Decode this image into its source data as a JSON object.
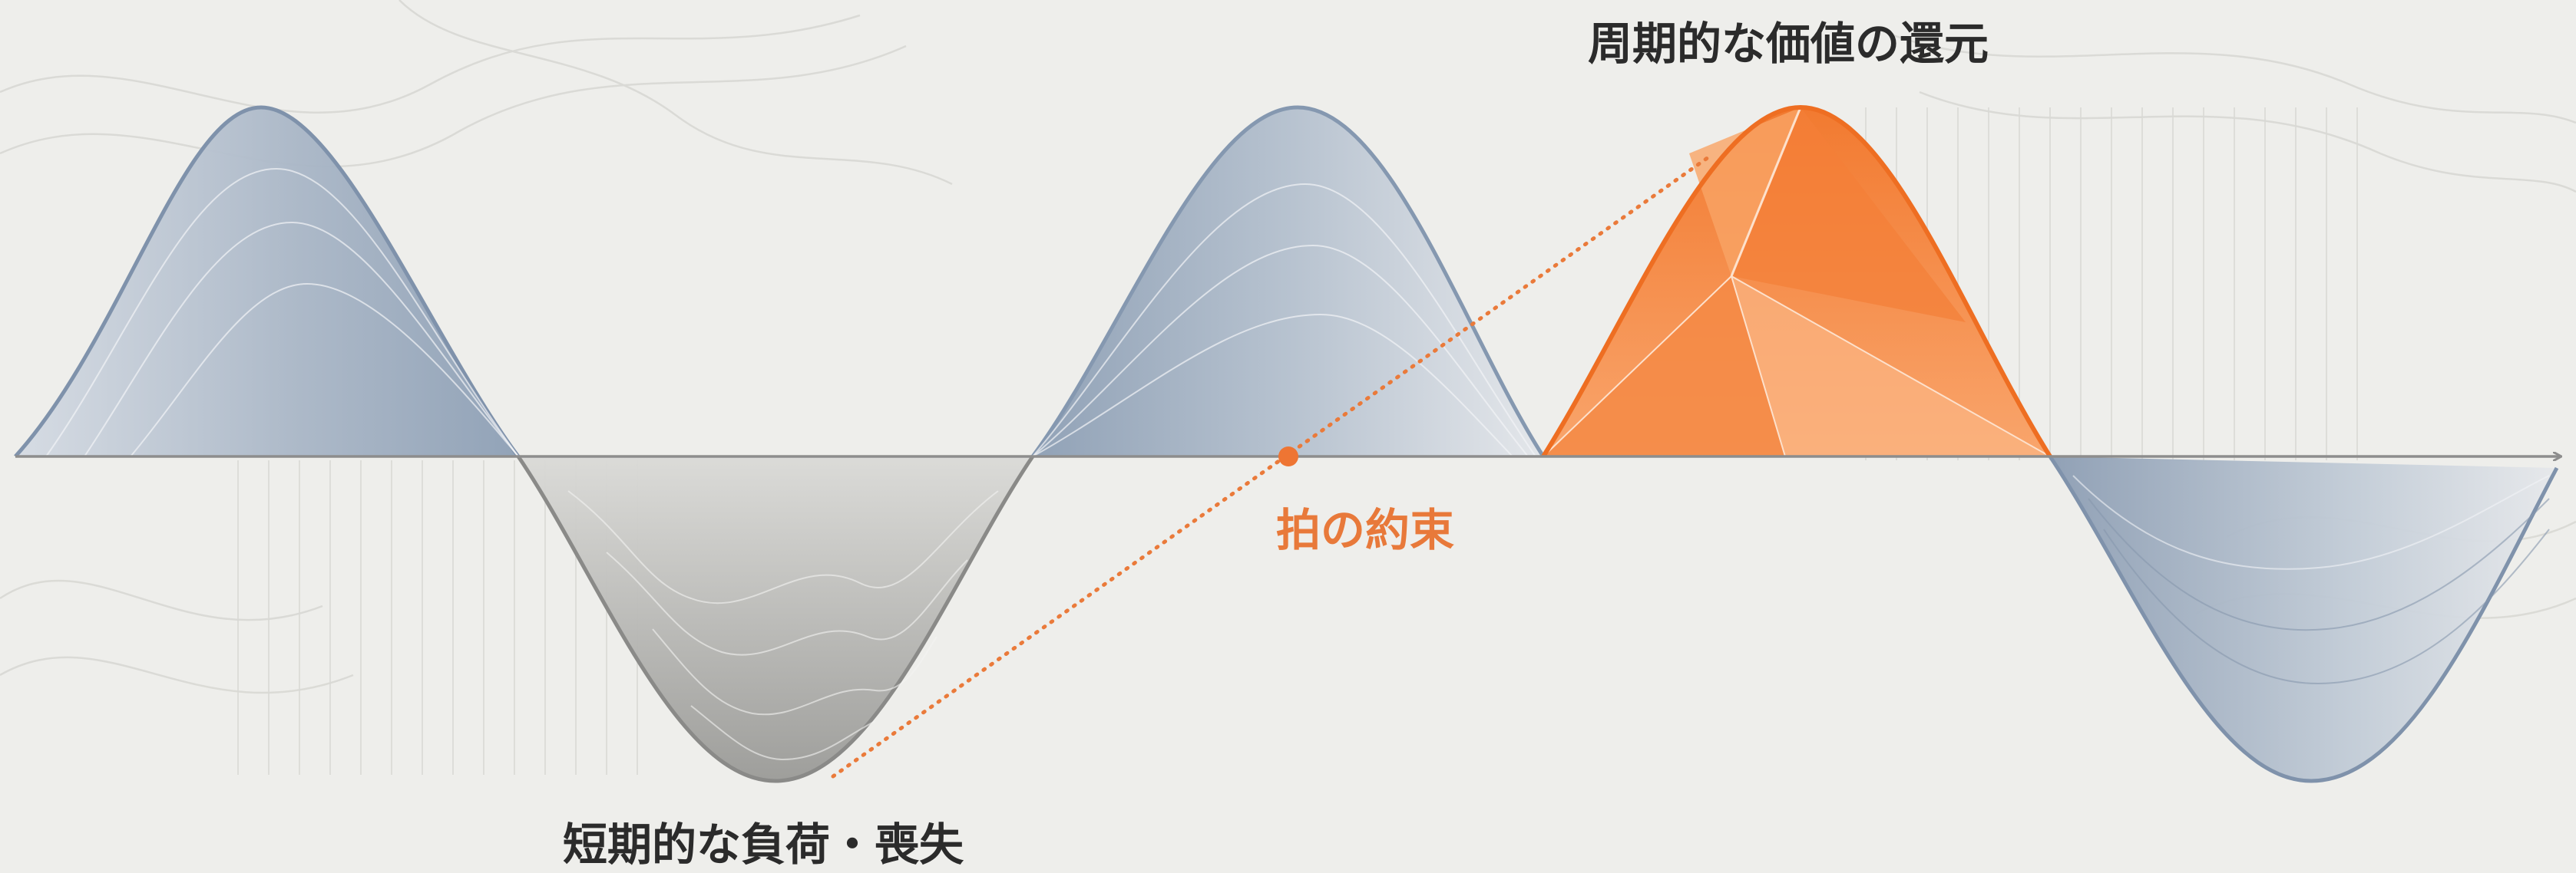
{
  "labels": {
    "peak": "周期的な価値の還元",
    "trough": "短期的な負荷・喪失",
    "center": "拍の約束"
  },
  "colors": {
    "background": "#eeeeeb",
    "wave_blue": "#7f92ab",
    "wave_gray": "#8a8a88",
    "highlight_orange": "#f07a35",
    "axis": "#8d8d8d",
    "text_dark": "#2b2b2b",
    "text_orange": "#e8793a"
  },
  "icons": {
    "axis_end": "arrow-right",
    "center_marker": "dot"
  }
}
